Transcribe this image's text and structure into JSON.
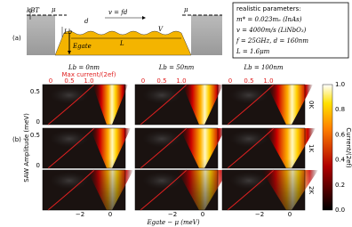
{
  "panel_a": {
    "label": "(a)",
    "kbt": "kBT",
    "mu_left": "μ",
    "mu_right": "μ",
    "d": "d",
    "velocity": "v = fd",
    "lb": "Lb",
    "v": "V",
    "l": "L",
    "egate": "Egate",
    "parameters": [
      "realistic parameters:",
      "m* = 0.023mₑ (InAs)",
      "v = 4000m/s (LiNbO₃)",
      "f = 25GHz, d = 160nm",
      "L = 1.6μm"
    ]
  },
  "panel_b": {
    "label": "(b)",
    "columns": [
      "Lb = 0nm",
      "Lb = 50nm",
      "Lb = 100nm"
    ],
    "rows": [
      "0K",
      "1K",
      "2K"
    ],
    "ylabel": "SAW Amplitude (meV)",
    "yticks": [
      "0.5",
      "0"
    ],
    "xlabel": "Egate − μ (meV)",
    "xticks": [
      "−2",
      "0"
    ],
    "top_axis_label": "Max current/(2ef)",
    "top_ticks": [
      "0",
      "0.5",
      "1.0"
    ],
    "colorbar_label": "Current/(2ef)",
    "colorbar_ticks": [
      "0.0",
      "0.2",
      "0.4",
      "0.6",
      "0.8",
      "1.0"
    ]
  }
}
